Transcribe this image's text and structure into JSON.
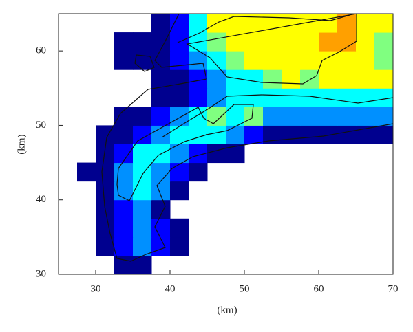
{
  "chart_data": {
    "type": "heatmap",
    "xlabel": "(km)",
    "ylabel": "(km)",
    "xlim": [
      25,
      70
    ],
    "ylim": [
      30,
      65
    ],
    "xticks": [
      30,
      40,
      50,
      60,
      70
    ],
    "yticks": [
      30,
      40,
      50,
      60
    ],
    "x_bins": [
      25,
      27.5,
      30,
      32.5,
      35,
      37.5,
      40,
      42.5,
      45,
      47.5,
      50,
      52.5,
      55,
      57.5,
      60,
      62.5,
      65,
      67.5,
      70
    ],
    "y_bins": [
      30,
      32.5,
      35,
      37.5,
      40,
      42.5,
      45,
      47.5,
      50,
      52.5,
      55,
      57.5,
      60,
      62.5,
      65
    ],
    "colors": [
      "#00008f",
      "#0000ff",
      "#0090ff",
      "#00ffff",
      "#80ff80",
      "#ffff00",
      "#ffa000"
    ],
    "values": [
      [
        null,
        null,
        null,
        0,
        0,
        null,
        null,
        null,
        null,
        null,
        null,
        null,
        null,
        null,
        null,
        null,
        null,
        null
      ],
      [
        null,
        null,
        0,
        1,
        2,
        1,
        0,
        null,
        null,
        null,
        null,
        null,
        null,
        null,
        null,
        null,
        null,
        null
      ],
      [
        null,
        null,
        0,
        1,
        2,
        1,
        0,
        null,
        null,
        null,
        null,
        null,
        null,
        null,
        null,
        null,
        null,
        null
      ],
      [
        null,
        null,
        0,
        1,
        2,
        0,
        null,
        null,
        null,
        null,
        null,
        null,
        null,
        null,
        null,
        null,
        null,
        null
      ],
      [
        null,
        null,
        0,
        2,
        3,
        2,
        0,
        null,
        null,
        null,
        null,
        null,
        null,
        null,
        null,
        null,
        null,
        null
      ],
      [
        null,
        0,
        0,
        2,
        3,
        2,
        1,
        0,
        null,
        null,
        null,
        null,
        null,
        null,
        null,
        null,
        null,
        null
      ],
      [
        null,
        null,
        0,
        1,
        3,
        3,
        2,
        1,
        0,
        0,
        null,
        null,
        null,
        null,
        null,
        null,
        null,
        null
      ],
      [
        null,
        null,
        0,
        0,
        1,
        2,
        3,
        3,
        3,
        2,
        1,
        0,
        0,
        0,
        0,
        0,
        0,
        0
      ],
      [
        null,
        null,
        null,
        0,
        0,
        1,
        2,
        3,
        4,
        3,
        4,
        2,
        2,
        2,
        2,
        2,
        2,
        2
      ],
      [
        null,
        null,
        null,
        null,
        null,
        0,
        0,
        1,
        2,
        3,
        3,
        3,
        3,
        3,
        3,
        3,
        3,
        3
      ],
      [
        null,
        null,
        null,
        null,
        null,
        0,
        0,
        1,
        2,
        3,
        3,
        4,
        5,
        4,
        5,
        5,
        5,
        5
      ],
      [
        null,
        null,
        null,
        0,
        0,
        0,
        1,
        2,
        3,
        4,
        5,
        5,
        5,
        5,
        5,
        5,
        5,
        4
      ],
      [
        null,
        null,
        null,
        0,
        0,
        0,
        1,
        3,
        4,
        5,
        5,
        5,
        5,
        5,
        6,
        6,
        5,
        4
      ],
      [
        null,
        null,
        null,
        null,
        null,
        0,
        1,
        3,
        5,
        5,
        5,
        5,
        5,
        5,
        5,
        6,
        5,
        5
      ]
    ]
  }
}
